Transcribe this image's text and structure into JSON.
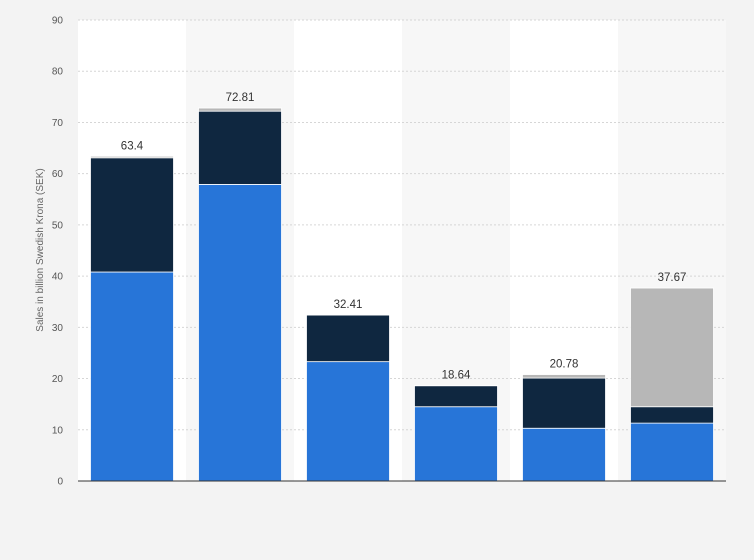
{
  "chart_data": {
    "type": "bar",
    "stacked": true,
    "title": "",
    "xlabel": "",
    "ylabel": "Sales in billion Swedish Krona (SEK)",
    "ylim": [
      0,
      90
    ],
    "yticks": [
      0,
      10,
      20,
      30,
      40,
      50,
      60,
      70,
      80,
      90
    ],
    "grid": true,
    "categories": [
      "",
      "",
      "",
      "",
      "",
      ""
    ],
    "totals_labels": [
      "63.4",
      "72.81",
      "32.41",
      "18.64",
      "20.78",
      "37.67"
    ],
    "series": [
      {
        "color": "#2775d8",
        "values": [
          40.8,
          57.9,
          23.3,
          14.5,
          10.3,
          11.3
        ]
      },
      {
        "color": "#0f2740",
        "values": [
          22.3,
          14.3,
          9.1,
          4.1,
          9.8,
          3.2
        ]
      },
      {
        "color": "#b7b7b7",
        "values": [
          0.3,
          0.61,
          0.01,
          0.04,
          0.68,
          23.17
        ]
      }
    ]
  }
}
